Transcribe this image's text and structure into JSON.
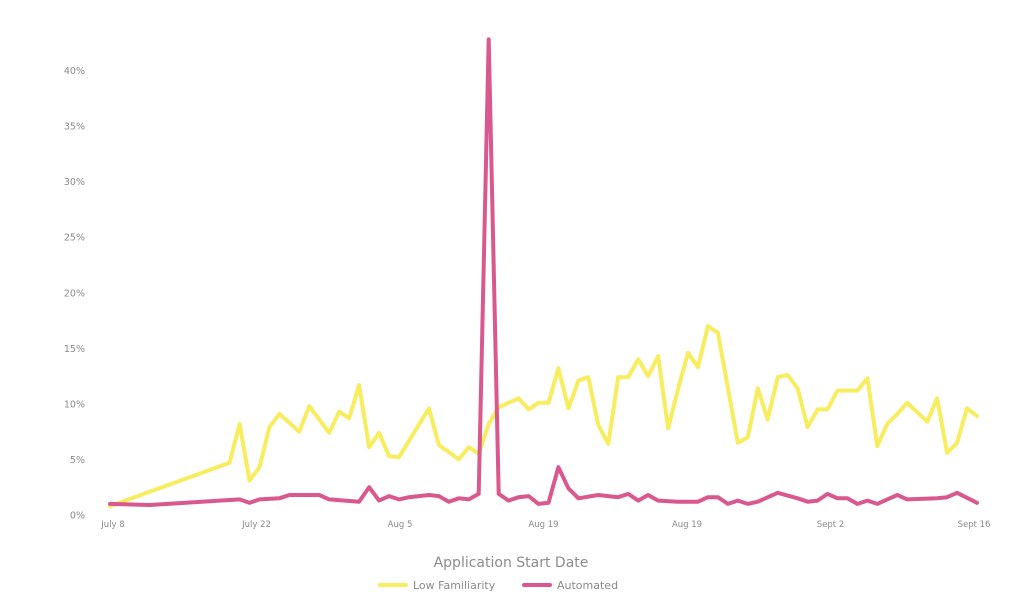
{
  "chart_data": {
    "type": "line",
    "title": "",
    "xlabel": "Application Start Date",
    "ylabel": "",
    "ylim": [
      0,
      45
    ],
    "y_ticks": [
      0,
      5,
      10,
      15,
      20,
      25,
      30,
      35,
      40
    ],
    "y_tick_labels": [
      "0%",
      "5%",
      "10%",
      "15%",
      "20%",
      "25%",
      "30%",
      "35%",
      "40%"
    ],
    "x_ticks": [
      "July 8",
      "July 22",
      "Aug 5",
      "Aug 19",
      "Aug 19",
      "Sept 2",
      "Sept 16"
    ],
    "grid": false,
    "legend_position": "bottom-center",
    "series": [
      {
        "name": "Low Familiarity",
        "color": "#f8ec5f",
        "points": [
          [
            "July 8",
            0.8
          ],
          [
            "July 20",
            4.7
          ],
          [
            "July 21",
            8.2
          ],
          [
            "July 22",
            3.1
          ],
          [
            "July 23",
            4.3
          ],
          [
            "July 24",
            7.9
          ],
          [
            "July 25",
            9.1
          ],
          [
            "July 27",
            7.5
          ],
          [
            "July 28",
            9.8
          ],
          [
            "July 30",
            7.4
          ],
          [
            "July 31",
            9.3
          ],
          [
            "Aug 1",
            8.7
          ],
          [
            "Aug 2",
            11.7
          ],
          [
            "Aug 3",
            6.1
          ],
          [
            "Aug 4",
            7.4
          ],
          [
            "Aug 5",
            5.3
          ],
          [
            "Aug 6",
            5.2
          ],
          [
            "Aug 9",
            9.6
          ],
          [
            "Aug 10",
            6.3
          ],
          [
            "Aug 12",
            5.0
          ],
          [
            "Aug 13",
            6.1
          ],
          [
            "Aug 14",
            5.5
          ],
          [
            "Aug 15",
            8.2
          ],
          [
            "Aug 16",
            9.7
          ],
          [
            "Aug 18",
            10.5
          ],
          [
            "Aug 19",
            9.5
          ],
          [
            "Aug 20",
            10.1
          ],
          [
            "Aug 21",
            10.1
          ],
          [
            "Aug 22",
            13.2
          ],
          [
            "Aug 23",
            9.6
          ],
          [
            "Aug 24",
            12.1
          ],
          [
            "Aug 25",
            12.4
          ],
          [
            "Aug 26",
            8.1
          ],
          [
            "Aug 27",
            6.4
          ],
          [
            "Aug 28",
            12.4
          ],
          [
            "Aug 29",
            12.4
          ],
          [
            "Aug 30",
            14.0
          ],
          [
            "Aug 31",
            12.5
          ],
          [
            "Sept 1",
            14.3
          ],
          [
            "Sept 2",
            7.8
          ],
          [
            "Sept 3",
            11.3
          ],
          [
            "Sept 4",
            14.6
          ],
          [
            "Sept 5",
            13.3
          ],
          [
            "Sept 6",
            17.0
          ],
          [
            "Sept 7",
            16.4
          ],
          [
            "Sept 9",
            6.5
          ],
          [
            "Sept 10",
            7.0
          ],
          [
            "Sept 11",
            11.4
          ],
          [
            "Sept 12",
            8.6
          ],
          [
            "Sept 13",
            12.4
          ],
          [
            "Sept 14",
            12.6
          ],
          [
            "Sept 15",
            11.4
          ],
          [
            "Sept 16",
            7.9
          ],
          [
            "Sept 17",
            9.5
          ],
          [
            "Sept 18",
            9.5
          ],
          [
            "Sept 19",
            11.2
          ],
          [
            "Sept 20",
            11.2
          ],
          [
            "Sept 21",
            11.2
          ],
          [
            "Sept 22",
            12.3
          ],
          [
            "Sept 23",
            6.2
          ],
          [
            "Sept 24",
            8.2
          ],
          [
            "Sept 25",
            9.1
          ],
          [
            "Sept 26",
            10.1
          ],
          [
            "Sept 28",
            8.4
          ],
          [
            "Sept 29",
            10.5
          ],
          [
            "Sept 30",
            5.6
          ],
          [
            "Oct 1",
            6.5
          ],
          [
            "Oct 2",
            9.6
          ],
          [
            "Oct 3",
            8.9
          ]
        ]
      },
      {
        "name": "Automated",
        "color": "#d9588e",
        "points": [
          [
            "July 8",
            1.0
          ],
          [
            "July 12",
            0.9
          ],
          [
            "July 21",
            1.4
          ],
          [
            "July 22",
            1.1
          ],
          [
            "July 23",
            1.4
          ],
          [
            "July 25",
            1.5
          ],
          [
            "July 26",
            1.8
          ],
          [
            "July 29",
            1.8
          ],
          [
            "July 30",
            1.4
          ],
          [
            "Aug 2",
            1.2
          ],
          [
            "Aug 3",
            2.5
          ],
          [
            "Aug 4",
            1.3
          ],
          [
            "Aug 5",
            1.7
          ],
          [
            "Aug 6",
            1.4
          ],
          [
            "Aug 7",
            1.6
          ],
          [
            "Aug 9",
            1.8
          ],
          [
            "Aug 10",
            1.7
          ],
          [
            "Aug 11",
            1.2
          ],
          [
            "Aug 12",
            1.5
          ],
          [
            "Aug 13",
            1.4
          ],
          [
            "Aug 14",
            1.9
          ],
          [
            "Aug 15",
            42.8
          ],
          [
            "Aug 16",
            1.9
          ],
          [
            "Aug 17",
            1.3
          ],
          [
            "Aug 18",
            1.6
          ],
          [
            "Aug 19",
            1.7
          ],
          [
            "Aug 20",
            1.0
          ],
          [
            "Aug 21",
            1.1
          ],
          [
            "Aug 22",
            4.3
          ],
          [
            "Aug 23",
            2.4
          ],
          [
            "Aug 24",
            1.5
          ],
          [
            "Aug 26",
            1.8
          ],
          [
            "Aug 28",
            1.6
          ],
          [
            "Aug 29",
            1.9
          ],
          [
            "Aug 30",
            1.3
          ],
          [
            "Aug 31",
            1.8
          ],
          [
            "Sept 1",
            1.3
          ],
          [
            "Sept 3",
            1.2
          ],
          [
            "Sept 5",
            1.2
          ],
          [
            "Sept 6",
            1.6
          ],
          [
            "Sept 7",
            1.6
          ],
          [
            "Sept 8",
            1.0
          ],
          [
            "Sept 9",
            1.3
          ],
          [
            "Sept 10",
            1.0
          ],
          [
            "Sept 11",
            1.2
          ],
          [
            "Sept 13",
            2.0
          ],
          [
            "Sept 15",
            1.5
          ],
          [
            "Sept 16",
            1.2
          ],
          [
            "Sept 17",
            1.3
          ],
          [
            "Sept 18",
            1.9
          ],
          [
            "Sept 19",
            1.5
          ],
          [
            "Sept 20",
            1.5
          ],
          [
            "Sept 21",
            1.0
          ],
          [
            "Sept 22",
            1.3
          ],
          [
            "Sept 23",
            1.0
          ],
          [
            "Sept 24",
            1.4
          ],
          [
            "Sept 25",
            1.8
          ],
          [
            "Sept 26",
            1.4
          ],
          [
            "Sept 29",
            1.5
          ],
          [
            "Sept 30",
            1.6
          ],
          [
            "Oct 1",
            2.0
          ],
          [
            "Oct 3",
            1.1
          ]
        ]
      }
    ]
  }
}
